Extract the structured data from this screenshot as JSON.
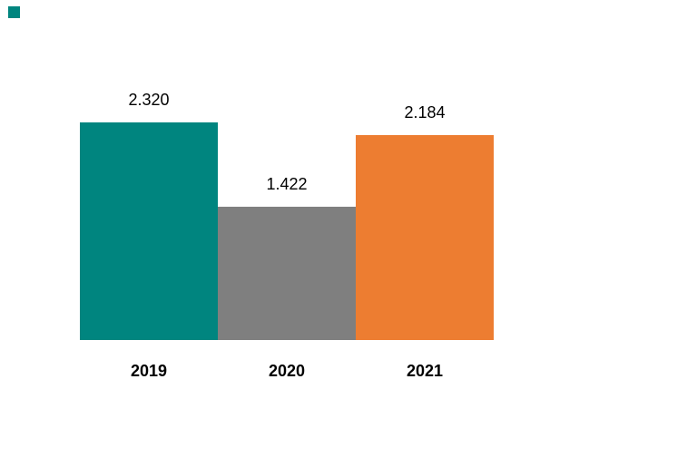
{
  "chart_data": {
    "type": "bar",
    "categories": [
      "2019",
      "2020",
      "2021"
    ],
    "values": [
      2320,
      1422,
      2184
    ],
    "value_labels": [
      "2.320",
      "1.422",
      "2.184"
    ],
    "series": [
      {
        "name": "",
        "values": [
          2320,
          1422,
          2184
        ]
      }
    ],
    "title": "",
    "xlabel": "",
    "ylabel": "",
    "ylim": [
      0,
      2320
    ],
    "grid": false,
    "legend": false,
    "axes_visible": false,
    "bar_colors": [
      "#00857F",
      "#7F7F7F",
      "#ED7D31"
    ],
    "data_label_position": "outside-end",
    "data_label_color": "#000000",
    "category_label_color": "#000000"
  },
  "decorations": {
    "corner_mark_color": "#00857F"
  }
}
